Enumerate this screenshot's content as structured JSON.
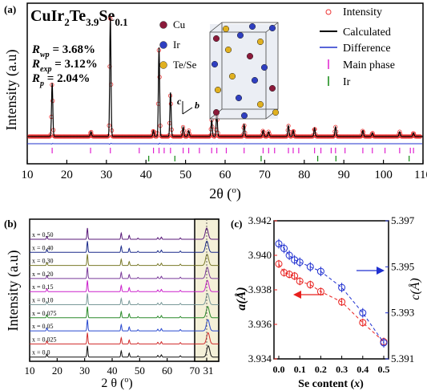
{
  "chart_data": [
    {
      "panel": "(a)",
      "type": "line",
      "title": "CuIr2Te3.9Se0.1",
      "title_parts": {
        "main": "CuIr",
        "sub1": "2",
        "mid": "Te",
        "sub2": "3.9",
        "end": "Se",
        "sub3": "0.1"
      },
      "xlabel": "2θ (o)",
      "xlabel_parts": {
        "text": "2θ (",
        "sup": "o",
        "close": ")"
      },
      "ylabel": "Intensity (a.u)",
      "xlim": [
        10,
        110
      ],
      "xticks": [
        "10",
        "20",
        "30",
        "40",
        "50",
        "60",
        "70",
        "80",
        "90",
        "100",
        "110"
      ],
      "fit_stats": [
        {
          "sym": "R",
          "sub": "wp",
          "value": "= 3.68%"
        },
        {
          "sym": "R",
          "sub": "exp",
          "value": "= 3.12%"
        },
        {
          "sym": "R",
          "sub": "p",
          "value": "= 2.04%"
        }
      ],
      "legend": [
        "Intensity",
        "Calculated",
        "Difference",
        "Main phase",
        "Ir"
      ],
      "peaks": [
        {
          "x": 16.3,
          "h": 0.45
        },
        {
          "x": 26.1,
          "h": 0.04
        },
        {
          "x": 31.0,
          "h": 1.0
        },
        {
          "x": 41.9,
          "h": 0.05
        },
        {
          "x": 43.3,
          "h": 0.75
        },
        {
          "x": 46.2,
          "h": 0.37
        },
        {
          "x": 49.4,
          "h": 0.08
        },
        {
          "x": 50.8,
          "h": 0.05
        },
        {
          "x": 56.6,
          "h": 0.14
        },
        {
          "x": 57.9,
          "h": 0.19
        },
        {
          "x": 64.8,
          "h": 0.1
        },
        {
          "x": 69.6,
          "h": 0.05
        },
        {
          "x": 71.0,
          "h": 0.04
        },
        {
          "x": 76.0,
          "h": 0.09
        },
        {
          "x": 77.2,
          "h": 0.05
        },
        {
          "x": 82.6,
          "h": 0.07
        },
        {
          "x": 87.9,
          "h": 0.08
        },
        {
          "x": 94.8,
          "h": 0.05
        },
        {
          "x": 97.2,
          "h": 0.03
        },
        {
          "x": 104.1,
          "h": 0.04
        },
        {
          "x": 107.6,
          "h": 0.03
        }
      ],
      "main_phase_ticks": [
        16.3,
        26.0,
        31.0,
        38.3,
        41.9,
        43.3,
        44.6,
        46.2,
        49.4,
        50.8,
        53.5,
        56.6,
        57.9,
        60.3,
        64.8,
        69.6,
        71.0,
        72.5,
        76.0,
        77.2,
        78.6,
        82.6,
        84.2,
        86.8,
        87.9,
        90.3,
        94.8,
        97.2,
        100.4,
        104.1,
        106.8,
        107.6
      ],
      "ir_ticks": [
        40.7,
        47.3,
        69.1,
        83.4,
        88.0,
        106.5
      ],
      "structure_labels": [
        {
          "text": "Cu",
          "color": "#8b1a3a"
        },
        {
          "text": "Ir",
          "color": "#2f3fc0"
        },
        {
          "text": "Te/Se",
          "color": "#e0b020"
        }
      ],
      "axes_labels": [
        "c",
        "b"
      ]
    },
    {
      "panel": "(b)",
      "type": "line",
      "xlabel": "2 θ (o)",
      "xlabel_parts": {
        "text": "2 θ (",
        "sup": "o",
        "close": ")"
      },
      "ylabel": "Intensity (a.u)",
      "xlim": [
        10,
        70
      ],
      "xticks": [
        "10",
        "20",
        "30",
        "40",
        "50",
        "60",
        "70"
      ],
      "inset_xtick": "31",
      "series": [
        {
          "label": "x = 0.50",
          "color": "#5a1a7a"
        },
        {
          "label": "x = 0.40",
          "color": "#1a2a8a"
        },
        {
          "label": "x = 0.30",
          "color": "#7a7a2a"
        },
        {
          "label": "x = 0.20",
          "color": "#7a3a9a"
        },
        {
          "label": "x = 0.15",
          "color": "#cc22cc"
        },
        {
          "label": "x = 0.10",
          "color": "#7a9a9a"
        },
        {
          "label": "x = 0.075",
          "color": "#2a8a2a"
        },
        {
          "label": "x = 0.05",
          "color": "#2a4ad0"
        },
        {
          "label": "x = 0.025",
          "color": "#d02a2a"
        },
        {
          "label": "x = 0.0",
          "color": "#111111"
        }
      ],
      "peaks": [
        16.3,
        31.0,
        43.3,
        46.2,
        49.4,
        56.6,
        57.9,
        64.8
      ]
    },
    {
      "panel": "(c)",
      "type": "scatter",
      "xlabel": "Se content (x)",
      "xlabel_parts": {
        "text": "Se content (",
        "var": "x",
        "close": ")"
      },
      "ylabel_left": "a(Å)",
      "ylabel_right": "c(Å)",
      "xlim": [
        0,
        0.5
      ],
      "ylim_left": [
        3.934,
        3.942
      ],
      "ylim_right": [
        5.391,
        5.397
      ],
      "xticks": [
        "0.0",
        "0.1",
        "0.2",
        "0.3",
        "0.4",
        "0.5"
      ],
      "yticks_left": [
        "3.934",
        "3.936",
        "3.938",
        "3.940",
        "3.942"
      ],
      "yticks_right": [
        "5.391",
        "5.393",
        "5.395",
        "5.397"
      ],
      "x": [
        0.0,
        0.025,
        0.05,
        0.075,
        0.1,
        0.15,
        0.2,
        0.3,
        0.4,
        0.5
      ],
      "series": [
        {
          "name": "a",
          "color": "#e8201e",
          "values": [
            3.9395,
            3.939,
            3.9389,
            3.9388,
            3.9385,
            3.9383,
            3.9379,
            3.9373,
            3.9361,
            3.935
          ]
        },
        {
          "name": "c",
          "color": "#2030d0",
          "values": [
            5.396,
            5.3958,
            5.3955,
            5.3953,
            5.3952,
            5.395,
            5.3948,
            5.3941,
            5.393,
            5.3917
          ]
        }
      ]
    }
  ]
}
